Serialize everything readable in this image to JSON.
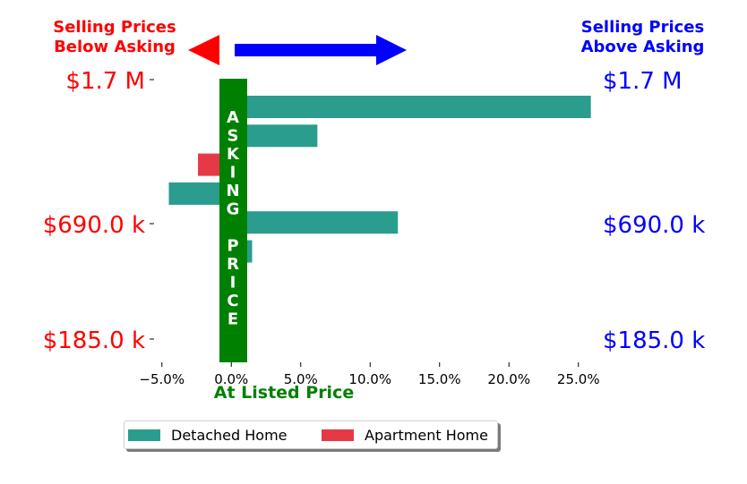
{
  "annotations": {
    "below_asking": [
      "Selling Prices",
      "Below Asking"
    ],
    "above_asking": [
      "Selling Prices",
      "Above Asking"
    ],
    "asking_price_letters": [
      "A",
      "S",
      "K",
      "I",
      "N",
      "G",
      "",
      "P",
      "R",
      "I",
      "C",
      "E"
    ],
    "at_listed_price": "At Listed Price"
  },
  "colors": {
    "detached": "#2a9d8f",
    "apartment": "#e63946",
    "asking_band": "#008000",
    "below": "#ff0000",
    "above": "#0000ff"
  },
  "legend": [
    {
      "name": "Detached Home",
      "color": "#2a9d8f"
    },
    {
      "name": "Apartment Home",
      "color": "#e63946"
    }
  ],
  "chart_data": {
    "type": "bar",
    "orientation": "horizontal",
    "x_unit": "percent",
    "xlim": [
      -5.5,
      26.5
    ],
    "x_ticks": [
      -5,
      0,
      5,
      10,
      15,
      20,
      25
    ],
    "x_tick_labels": [
      "−5.0%",
      "0.0%",
      "5.0%",
      "10.0%",
      "15.0%",
      "20.0%",
      "25.0%"
    ],
    "y_tick_labels_left": [
      "$1.7 M",
      "$690.0 k",
      "$185.0 k"
    ],
    "y_tick_labels_right": [
      "$1.7 M",
      "$690.0 k",
      "$185.0 k"
    ],
    "xlabel": "At Listed Price",
    "grid": false,
    "legend_position": "bottom",
    "bars": [
      {
        "series": "Detached Home",
        "value": 25.9
      },
      {
        "series": "Detached Home",
        "value": 6.2
      },
      {
        "series": "Apartment Home",
        "value": -2.4
      },
      {
        "series": "Detached Home",
        "value": -4.5
      },
      {
        "series": "Detached Home",
        "value": 12.0
      },
      {
        "series": "Detached Home",
        "value": 1.5
      },
      {
        "series": "Apartment Home",
        "value": 1.1
      },
      {
        "series": "Apartment Home",
        "value": 1.1
      },
      {
        "series": "Apartment Home",
        "value": 1.1
      }
    ]
  }
}
